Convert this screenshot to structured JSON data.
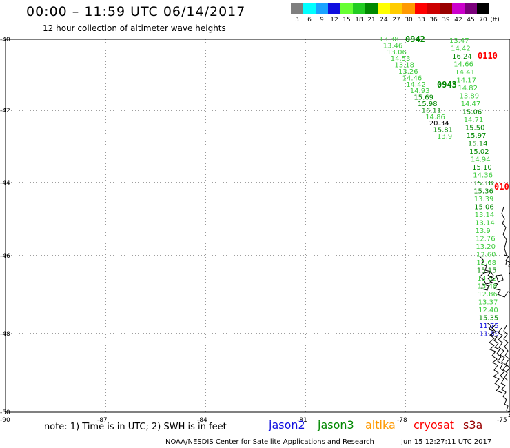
{
  "header": {
    "title": "00:00 – 11:59 UTC 06/14/2017",
    "subtitle": "12 hour collection of altimeter wave heights"
  },
  "color_scale": {
    "unit_label": "(ft)",
    "bins": [
      {
        "label": "3",
        "color": "#7f7f7f"
      },
      {
        "label": "6",
        "color": "#00ffff"
      },
      {
        "label": "9",
        "color": "#1aa3ff"
      },
      {
        "label": "12",
        "color": "#1010e0"
      },
      {
        "label": "15",
        "color": "#66ff33"
      },
      {
        "label": "18",
        "color": "#22cc22"
      },
      {
        "label": "21",
        "color": "#008800"
      },
      {
        "label": "24",
        "color": "#ffff00"
      },
      {
        "label": "27",
        "color": "#ffcc00"
      },
      {
        "label": "30",
        "color": "#ff9900"
      },
      {
        "label": "33",
        "color": "#ff0000"
      },
      {
        "label": "36",
        "color": "#cc0000"
      },
      {
        "label": "39",
        "color": "#990000"
      },
      {
        "label": "42",
        "color": "#cc00cc"
      },
      {
        "label": "45",
        "color": "#7a007a"
      },
      {
        "label": "70",
        "color": "#000000"
      }
    ]
  },
  "map": {
    "lat_labels": [
      "-40",
      "-42",
      "-44",
      "-46",
      "-48",
      "-50"
    ],
    "lon_labels": [
      "-90",
      "-87",
      "-84",
      "-81",
      "-78",
      "-75"
    ],
    "time_labels": [
      {
        "text": "0942",
        "color": "#008800"
      },
      {
        "text": "0943",
        "color": "#008800"
      },
      {
        "text": "0110",
        "color": "#ff0000"
      },
      {
        "text": "010",
        "color": "#ff0000"
      }
    ],
    "swh_values": [
      "13.38",
      "13.46",
      "13.06",
      "14.53",
      "13.18",
      "13.26",
      "14.46",
      "14.42",
      "14.93",
      "15.69",
      "15.98",
      "16.11",
      "14.86",
      "20.34",
      "15.81",
      "13.9",
      "13.47",
      "14.42",
      "16.24",
      "14.66",
      "14.41",
      "14.17",
      "14.82",
      "13.89",
      "14.47",
      "15.06",
      "14.71",
      "15.50",
      "15.97",
      "15.14",
      "15.02",
      "14.94",
      "15.10",
      "14.36",
      "15.18",
      "15.36",
      "13.39",
      "15.06",
      "13.14",
      "13.14",
      "13.9",
      "12.76",
      "13.20",
      "13.60",
      "12.68",
      "15.15",
      "13.52",
      "13.48",
      "12.86",
      "13.37",
      "12.40",
      "15.35",
      "11.75",
      "11.59"
    ]
  },
  "footer": {
    "note": "note: 1) Time is in UTC; 2) SWH is in feet",
    "satellites": [
      {
        "name": "jason2",
        "color": "#1010e0"
      },
      {
        "name": "jason3",
        "color": "#008800"
      },
      {
        "name": "altika",
        "color": "#ff9900"
      },
      {
        "name": "cryosat",
        "color": "#ff0000"
      },
      {
        "name": "s3a",
        "color": "#990000"
      }
    ],
    "credit": "NOAA/NESDIS Center for Satellite Applications and Research",
    "generated": "Jun 15 12:27:11 UTC 2017"
  }
}
